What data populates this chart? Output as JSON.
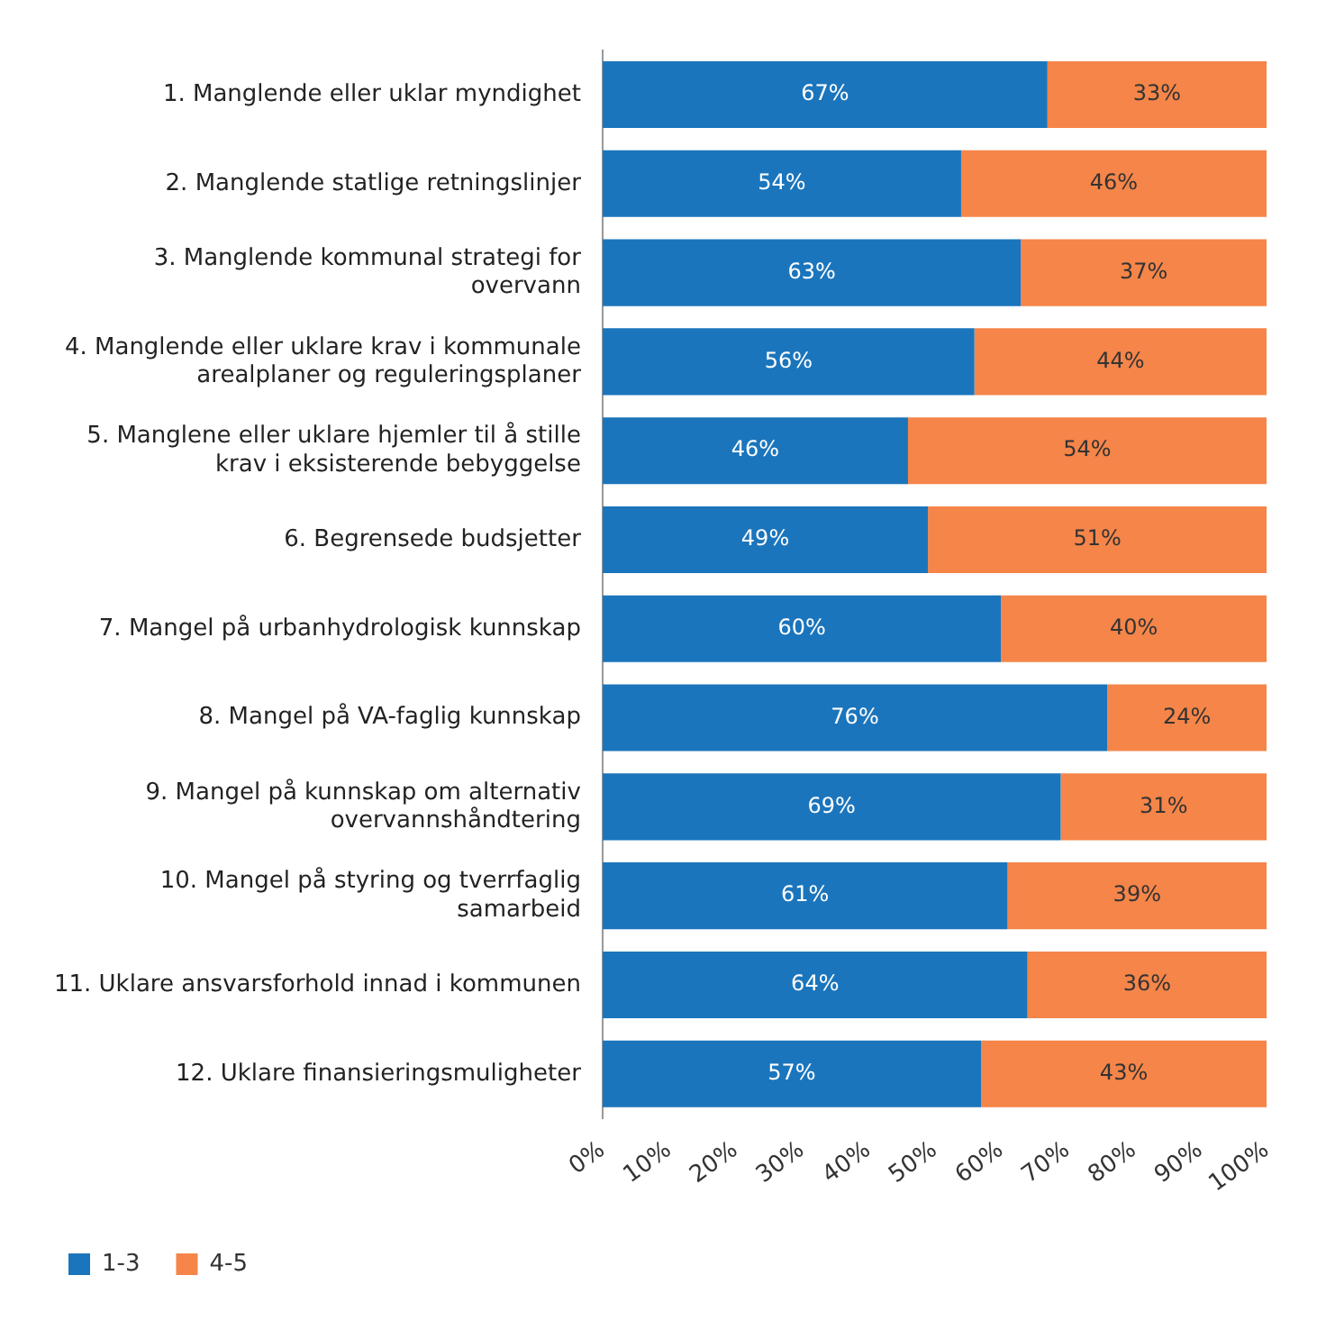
{
  "chart_data": {
    "type": "bar",
    "orientation": "horizontal",
    "stacked": true,
    "categories": [
      "1. Manglende eller uklar myndighet",
      "2. Manglende statlige retningslinjer",
      "3. Manglende kommunal strategi for overvann",
      "4. Manglende eller uklare krav i kommunale arealplaner og reguleringsplaner",
      "5. Manglene eller uklare hjemler til å stille krav i eksisterende bebyggelse",
      "6. Begrensede budsjetter",
      "7. Mangel på urbanhydrologisk kunnskap",
      "8. Mangel på VA-faglig kunnskap",
      "9. Mangel på kunnskap om alternativ overvannshåndtering",
      "10. Mangel på styring og tverrfaglig samarbeid",
      "11. Uklare ansvarsforhold innad i kommunen",
      "12. Uklare finansieringsmuligheter"
    ],
    "series": [
      {
        "name": "1-3",
        "color": "#1b75bc",
        "values": [
          67,
          54,
          63,
          56,
          46,
          49,
          60,
          76,
          69,
          61,
          64,
          57
        ],
        "value_labels": [
          "67%",
          "54%",
          "63%",
          "56%",
          "46%",
          "49%",
          "60%",
          "76%",
          "69%",
          "61%",
          "64%",
          "57%"
        ]
      },
      {
        "name": "4-5",
        "color": "#f58549",
        "values": [
          33,
          46,
          37,
          44,
          54,
          51,
          40,
          24,
          31,
          39,
          36,
          43
        ],
        "value_labels": [
          "33%",
          "46%",
          "37%",
          "44%",
          "54%",
          "51%",
          "40%",
          "24%",
          "31%",
          "39%",
          "36%",
          "43%"
        ]
      }
    ],
    "xlim": [
      0,
      100
    ],
    "xticks": [
      {
        "value": 0,
        "label": "0%"
      },
      {
        "value": 10,
        "label": "10%"
      },
      {
        "value": 20,
        "label": "20%"
      },
      {
        "value": 30,
        "label": "30%"
      },
      {
        "value": 40,
        "label": "40%"
      },
      {
        "value": 50,
        "label": "50%"
      },
      {
        "value": 60,
        "label": "60%"
      },
      {
        "value": 70,
        "label": "70%"
      },
      {
        "value": 80,
        "label": "80%"
      },
      {
        "value": 90,
        "label": "90%"
      },
      {
        "value": 100,
        "label": "100%"
      }
    ],
    "grid": false,
    "legend": "bottom left"
  }
}
